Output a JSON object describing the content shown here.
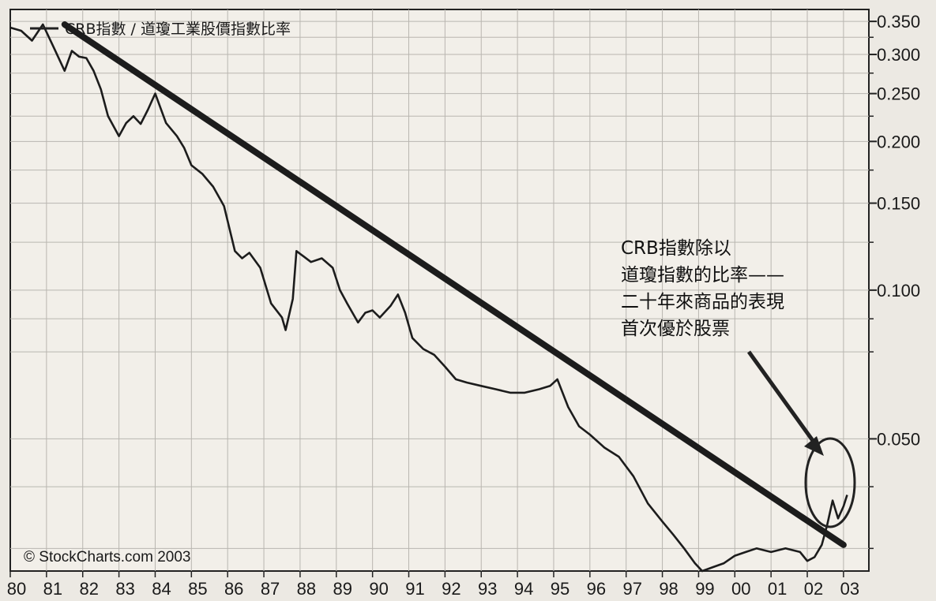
{
  "chart_data": {
    "type": "line",
    "title": "",
    "xlabel": "",
    "ylabel": "",
    "legend": {
      "label": "CRB指數 / 道瓊工業股價指數比率",
      "position": "top-left"
    },
    "y_scale": "log",
    "ylim": [
      0.027,
      0.37
    ],
    "xlim": [
      1980.0,
      2003.7
    ],
    "x_tick_labels": [
      "80",
      "81",
      "82",
      "83",
      "84",
      "85",
      "86",
      "87",
      "88",
      "89",
      "90",
      "91",
      "92",
      "93",
      "94",
      "95",
      "96",
      "97",
      "98",
      "99",
      "00",
      "01",
      "02",
      "03"
    ],
    "y_tick_labels": [
      {
        "value": 0.35,
        "label": "0.350"
      },
      {
        "value": 0.3,
        "label": "0.300"
      },
      {
        "value": 0.25,
        "label": "0.250"
      },
      {
        "value": 0.2,
        "label": "0.200"
      },
      {
        "value": 0.15,
        "label": "0.150"
      },
      {
        "value": 0.1,
        "label": "0.100"
      },
      {
        "value": 0.05,
        "label": "0.050"
      }
    ],
    "grid": true,
    "series": [
      {
        "x": [
          1980.0,
          1980.3,
          1980.6,
          1980.9,
          1981.2,
          1981.5,
          1981.7,
          1981.9,
          1982.1,
          1982.3,
          1982.5,
          1982.7,
          1983.0,
          1983.2,
          1983.4,
          1983.6,
          1983.8,
          1984.0,
          1984.3,
          1984.6,
          1984.8,
          1985.0,
          1985.3,
          1985.6,
          1985.9,
          1986.2,
          1986.4,
          1986.6,
          1986.9,
          1987.2,
          1987.5,
          1987.6,
          1987.8,
          1987.9,
          1988.1,
          1988.3,
          1988.6,
          1988.9,
          1989.1,
          1989.3,
          1989.6,
          1989.8,
          1990.0,
          1990.2,
          1990.5,
          1990.7,
          1990.9,
          1991.1,
          1991.4,
          1991.7,
          1992.0,
          1992.3,
          1992.6,
          1993.0,
          1993.4,
          1993.8,
          1994.2,
          1994.6,
          1994.9,
          1995.1,
          1995.4,
          1995.7,
          1996.0,
          1996.4,
          1996.8,
          1997.2,
          1997.6,
          1998.0,
          1998.3,
          1998.6,
          1998.9,
          1999.1,
          1999.4,
          1999.7,
          2000.0,
          2000.3,
          2000.6,
          2001.0,
          2001.4,
          2001.8,
          2002.0,
          2002.2,
          2002.4,
          2002.55,
          2002.7,
          2002.85,
          2003.0,
          2003.1
        ],
        "values": [
          0.34,
          0.335,
          0.32,
          0.345,
          0.31,
          0.278,
          0.305,
          0.297,
          0.295,
          0.278,
          0.255,
          0.225,
          0.205,
          0.218,
          0.225,
          0.217,
          0.232,
          0.25,
          0.218,
          0.205,
          0.194,
          0.179,
          0.172,
          0.162,
          0.148,
          0.12,
          0.116,
          0.119,
          0.111,
          0.094,
          0.088,
          0.083,
          0.096,
          0.12,
          0.117,
          0.114,
          0.116,
          0.111,
          0.1,
          0.094,
          0.086,
          0.09,
          0.091,
          0.088,
          0.093,
          0.098,
          0.09,
          0.08,
          0.076,
          0.074,
          0.07,
          0.066,
          0.065,
          0.064,
          0.063,
          0.062,
          0.062,
          0.063,
          0.064,
          0.066,
          0.058,
          0.053,
          0.051,
          0.048,
          0.046,
          0.042,
          0.037,
          0.034,
          0.032,
          0.03,
          0.028,
          0.027,
          0.0275,
          0.028,
          0.029,
          0.0295,
          0.03,
          0.0295,
          0.03,
          0.0295,
          0.0283,
          0.0288,
          0.0305,
          0.0335,
          0.0375,
          0.0345,
          0.0365,
          0.0385
        ]
      }
    ],
    "trendline": {
      "x": [
        1981.5,
        2003.0
      ],
      "values": [
        0.345,
        0.0305
      ]
    },
    "annotation": {
      "lines": [
        "CRB指數除以",
        "道瓊指數的比率——",
        "二十年來商品的表現",
        "首次優於股票"
      ]
    },
    "copyright": "© StockCharts.com 2003"
  }
}
